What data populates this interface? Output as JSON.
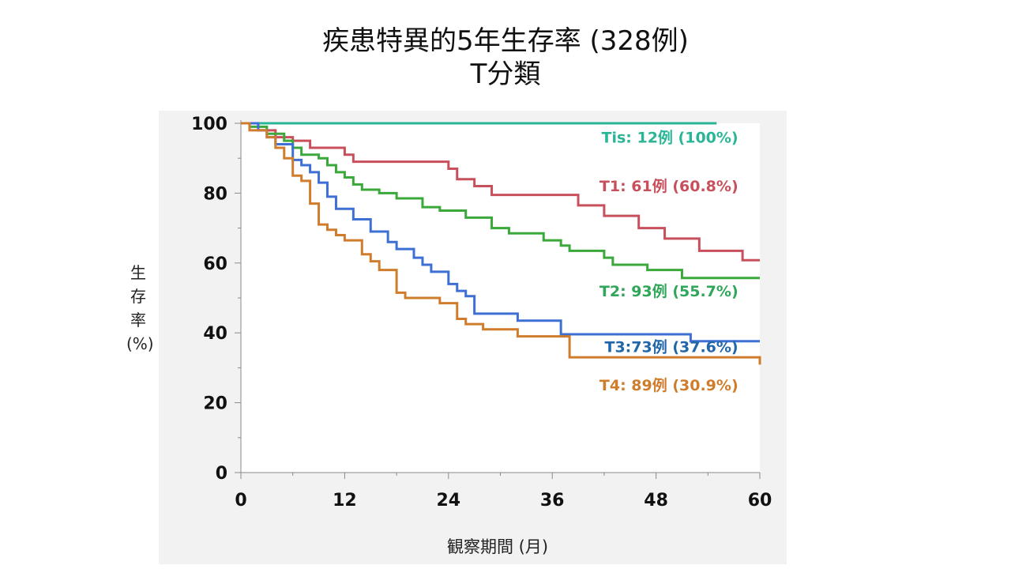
{
  "title": "疾患特異的5年生存率 (328例)",
  "subtitle": "T分類",
  "chart_data": {
    "type": "line",
    "step": true,
    "xlabel": "観察期間 (月)",
    "ylabel": [
      "生",
      "存",
      "率",
      "(%)"
    ],
    "xlim": [
      0,
      60
    ],
    "ylim": [
      0,
      100
    ],
    "xticks": [
      0,
      12,
      24,
      36,
      48,
      60
    ],
    "yticks": [
      0,
      20,
      40,
      60,
      80,
      100
    ],
    "grid": false,
    "series": [
      {
        "name": "Tis: 12例 (100%)",
        "color": "#2bb597",
        "x": [
          0,
          55
        ],
        "y": [
          100,
          100
        ]
      },
      {
        "name": "T1: 61例 (60.8%)",
        "color": "#c8505c",
        "x": [
          0,
          2,
          4,
          6,
          8,
          12,
          13,
          24,
          25,
          27,
          29,
          39,
          42,
          46,
          49,
          53,
          58,
          60
        ],
        "y": [
          100,
          98,
          96,
          95,
          93,
          91,
          89,
          87,
          84,
          82,
          79.5,
          76.5,
          73.5,
          70,
          67,
          63.5,
          60.8,
          60.8
        ]
      },
      {
        "name": "T2: 93例 (55.7%)",
        "color": "#3aa83a",
        "x": [
          0,
          1,
          3,
          5,
          6,
          7,
          9,
          10,
          11,
          12,
          13,
          14,
          16,
          18,
          21,
          23,
          26,
          29,
          31,
          35,
          37,
          38,
          42,
          43,
          47,
          51,
          60
        ],
        "y": [
          100,
          99,
          97,
          95,
          93,
          91,
          90,
          88,
          86,
          84.5,
          82.5,
          81,
          80,
          78.5,
          76,
          75,
          73,
          70,
          68.5,
          66.5,
          65,
          63.5,
          61.5,
          59.5,
          58,
          55.7,
          55.7
        ]
      },
      {
        "name": "T3:73例 (37.6%)",
        "color": "#3e6fd4",
        "x": [
          0,
          2,
          3,
          4,
          6,
          7,
          8,
          9,
          10,
          11,
          13,
          15,
          17,
          18,
          20,
          21,
          22,
          24,
          25,
          26,
          27,
          32,
          37,
          52,
          60
        ],
        "y": [
          100,
          98,
          96,
          94,
          89.5,
          88,
          86,
          83,
          79,
          75.5,
          72.5,
          69,
          66,
          64,
          61.5,
          59.5,
          57.5,
          54,
          52,
          50.5,
          45.5,
          43.5,
          39.6,
          37.6,
          37.6
        ]
      },
      {
        "name": "T4: 89例 (30.9%)",
        "color": "#cf7d2c",
        "x": [
          0,
          1,
          3,
          4,
          5,
          6,
          7,
          8,
          9,
          10,
          11,
          12,
          14,
          15,
          16,
          18,
          19,
          23,
          25,
          26,
          28,
          32,
          38,
          60
        ],
        "y": [
          100,
          98,
          96,
          93,
          90,
          85,
          83.5,
          77,
          71,
          69.5,
          68,
          66.5,
          62.5,
          60.5,
          58,
          51.5,
          50,
          48.5,
          44,
          42.5,
          41,
          39,
          33,
          30.9
        ]
      }
    ],
    "annotations": [
      {
        "text": "Tis: 12例 (100%)",
        "color": "#2bb597",
        "x": 57.5,
        "y": 94.5
      },
      {
        "text": "T1: 61例 (60.8%)",
        "color": "#c8505c",
        "x": 57.5,
        "y": 80.5
      },
      {
        "text": "T2: 93例 (55.7%)",
        "color": "#2fa65a",
        "x": 57.5,
        "y": 50.5
      },
      {
        "text": "T3:73例 (37.6%)",
        "color": "#2166a8",
        "x": 57.5,
        "y": 34.5
      },
      {
        "text": "T4: 89例 (30.9%)",
        "color": "#cf7d2c",
        "x": 57.5,
        "y": 23.5
      }
    ]
  }
}
